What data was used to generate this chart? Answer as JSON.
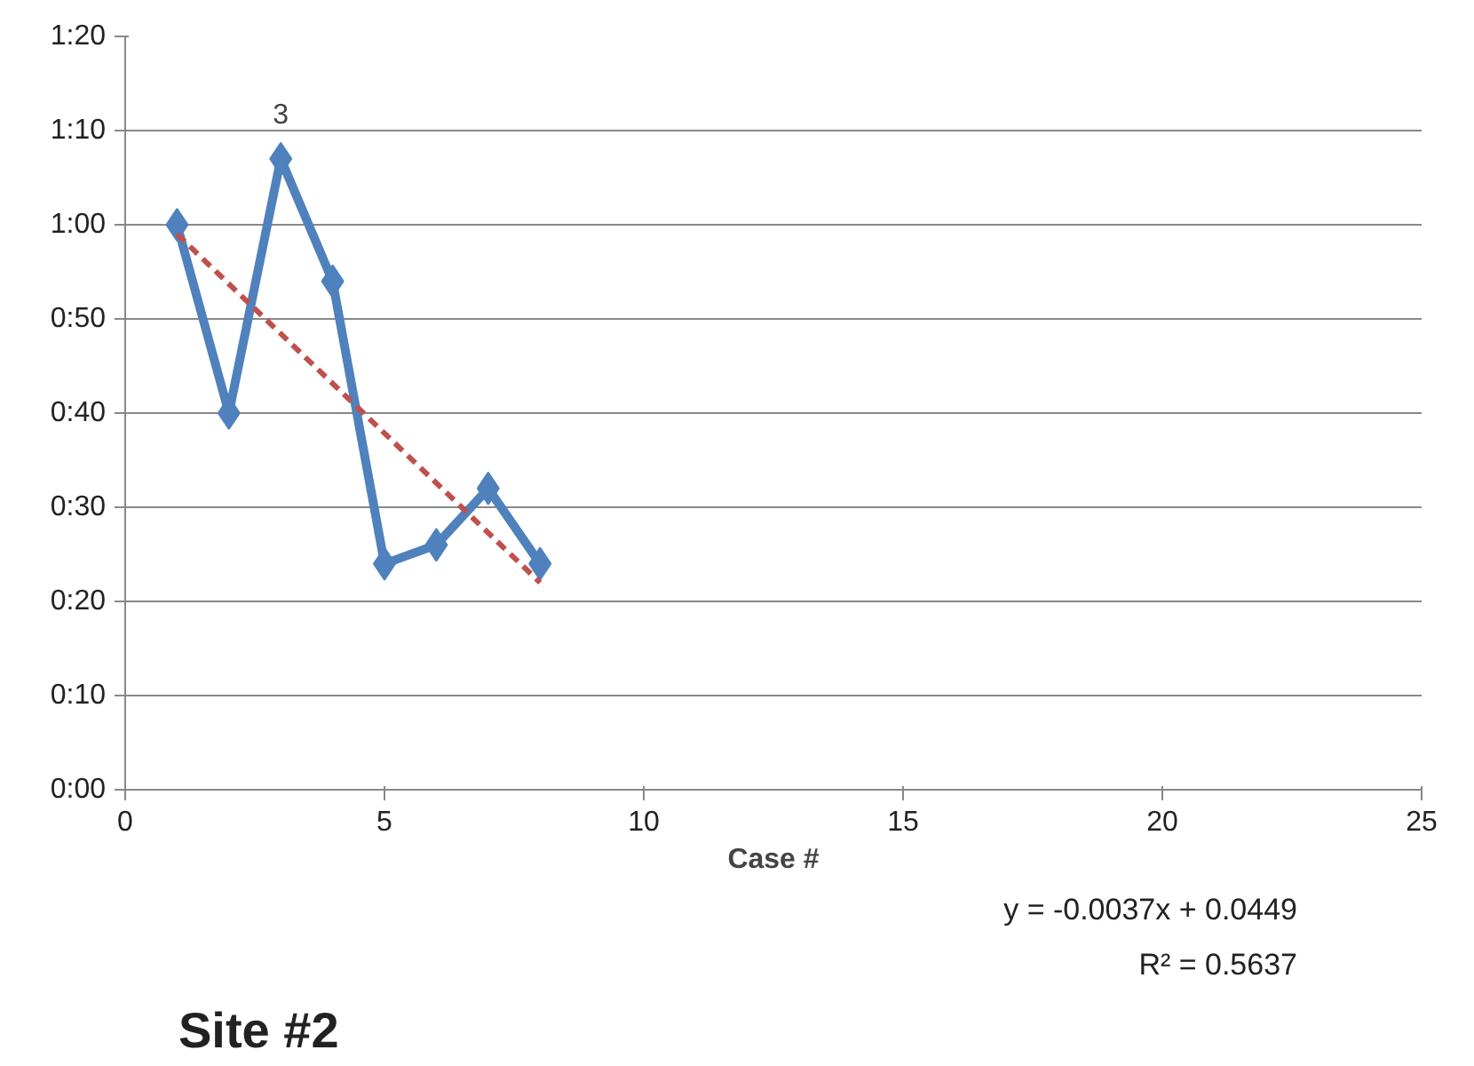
{
  "chart_data": {
    "type": "line",
    "xlabel": "Case #",
    "xlim": [
      0,
      25
    ],
    "xticks": [
      0,
      5,
      10,
      15,
      20,
      25
    ],
    "ylim": [
      0,
      80
    ],
    "yticks": [
      {
        "value": 0,
        "label": "0:00"
      },
      {
        "value": 10,
        "label": "0:10"
      },
      {
        "value": 20,
        "label": "0:20"
      },
      {
        "value": 30,
        "label": "0:30"
      },
      {
        "value": 40,
        "label": "0:40"
      },
      {
        "value": 50,
        "label": "0:50"
      },
      {
        "value": 60,
        "label": "1:00"
      },
      {
        "value": 70,
        "label": "1:10"
      },
      {
        "value": 80,
        "label": "1:20"
      }
    ],
    "series": [
      {
        "x": [
          1,
          2,
          3,
          4,
          5,
          6,
          7,
          8
        ],
        "values": [
          60,
          40,
          67,
          54,
          24,
          26,
          32,
          24
        ],
        "color": "#4f81bd",
        "marker": "diamond",
        "line_style": "solid"
      },
      {
        "type": "line",
        "x": [
          1,
          8
        ],
        "values": [
          59,
          22
        ],
        "color": "#c0504d",
        "marker": "none",
        "line_style": "dashed"
      }
    ],
    "annotations": [
      {
        "text": "3",
        "x": 3,
        "y": 67
      },
      "Site #2",
      "y = -0.0037x + 0.0449",
      "R² = 0.5637"
    ],
    "grid": "y"
  }
}
